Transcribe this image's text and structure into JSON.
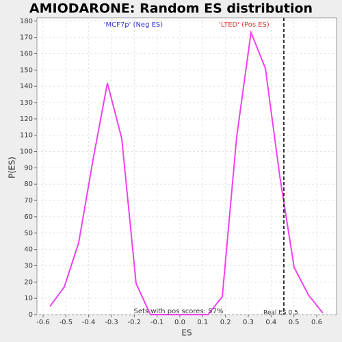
{
  "chart_data": {
    "type": "line",
    "title": "AMIODARONE: Random ES distribution",
    "x_label": "ES",
    "y_label": "P(ES)",
    "x": [
      -0.57,
      -0.507,
      -0.444,
      -0.381,
      -0.318,
      -0.255,
      -0.192,
      -0.129,
      -0.066,
      -0.003,
      0.06,
      0.123,
      0.186,
      0.249,
      0.312,
      0.375,
      0.438,
      0.501,
      0.564,
      0.627
    ],
    "series": [
      {
        "name": "P(ES)",
        "color": "#f040f0",
        "values": [
          5,
          17,
          44,
          95,
          142,
          108,
          19,
          0,
          0,
          0,
          0,
          0,
          11,
          109,
          173,
          151,
          85,
          29,
          12,
          1
        ]
      }
    ],
    "xlim": [
      -0.627,
      0.687
    ],
    "ylim": [
      0,
      182
    ],
    "xticks": [
      -0.6,
      -0.5,
      -0.4,
      -0.3,
      -0.2,
      -0.1,
      {
        "value": 0,
        "label": "0.0"
      },
      0.1,
      0.2,
      0.3,
      0.4,
      0.5,
      0.6
    ],
    "yticks": [
      0,
      10,
      20,
      30,
      40,
      50,
      60,
      70,
      80,
      90,
      100,
      110,
      120,
      130,
      140,
      150,
      160,
      170,
      180
    ],
    "grid": true,
    "neg_label": {
      "text": "'MCF7p' (Neg ES)",
      "color": "#3333cc"
    },
    "pos_label": {
      "text": "'LTED' (Pos ES)",
      "color": "#dd3333"
    },
    "pos_scores_note": "Sets with pos scores: 57%",
    "real_es": {
      "value": 0.456,
      "label": "Real ES 0.5"
    }
  }
}
